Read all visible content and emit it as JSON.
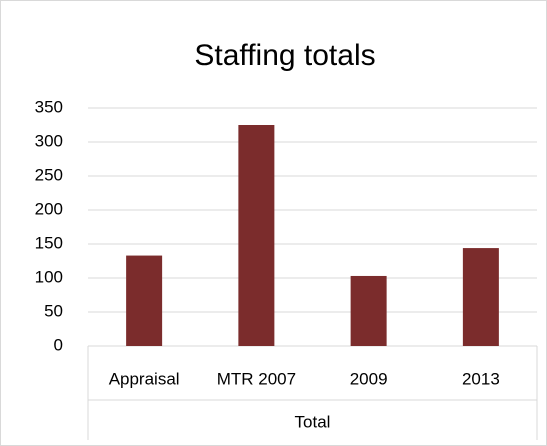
{
  "chart_data": {
    "type": "bar",
    "title": "Staffing totals",
    "categories": [
      "Appraisal",
      "MTR 2007",
      "2009",
      "2013"
    ],
    "group_label": "Total",
    "values": [
      133,
      325,
      103,
      144
    ],
    "color": "#7b2c2c",
    "ylim": [
      0,
      350
    ],
    "yticks": [
      0,
      50,
      100,
      150,
      200,
      250,
      300,
      350
    ],
    "grid": true
  }
}
